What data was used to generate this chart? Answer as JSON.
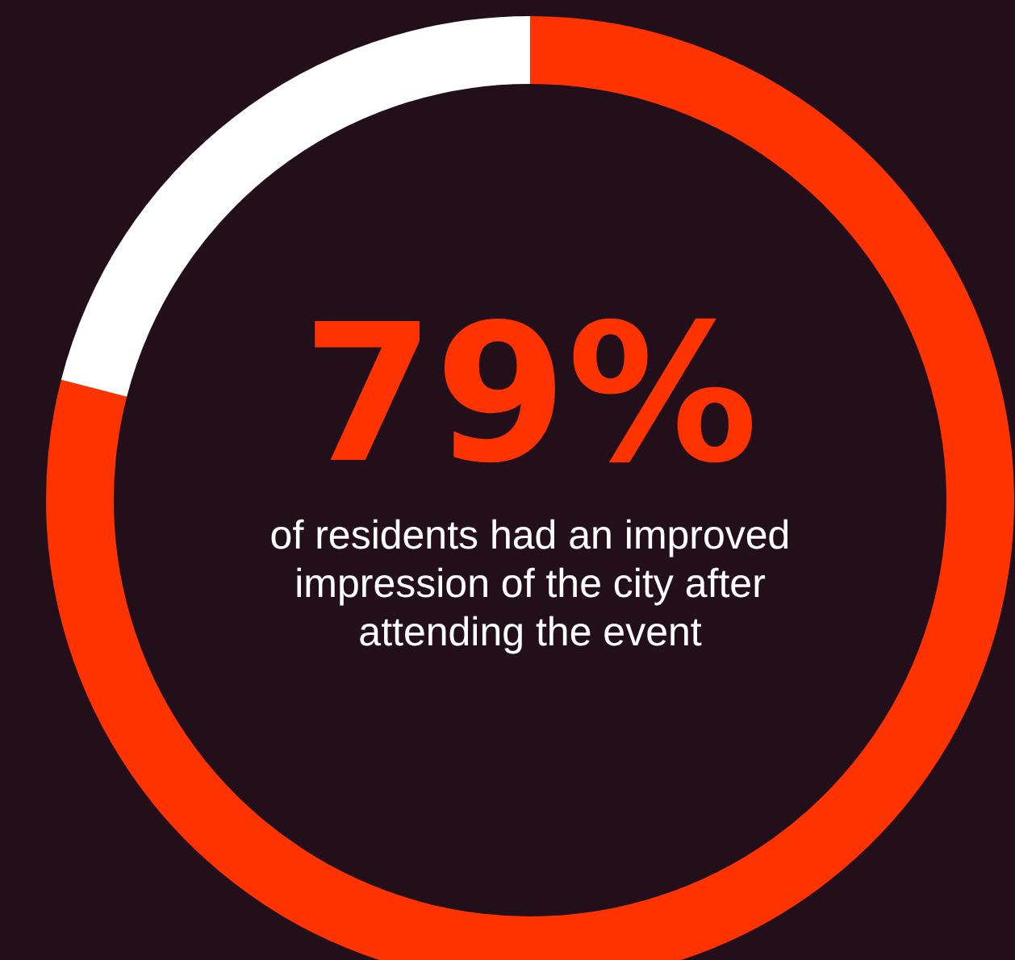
{
  "chart_data": {
    "type": "donut",
    "categories": [
      null,
      null
    ],
    "values": [
      79,
      21
    ],
    "colors": [
      "#ff3300",
      "#ffffff"
    ],
    "value_labels": [
      "79%",
      null
    ],
    "annotations": [
      "of residents had an improved impression of the city after attending the event"
    ],
    "legend": false
  }
}
